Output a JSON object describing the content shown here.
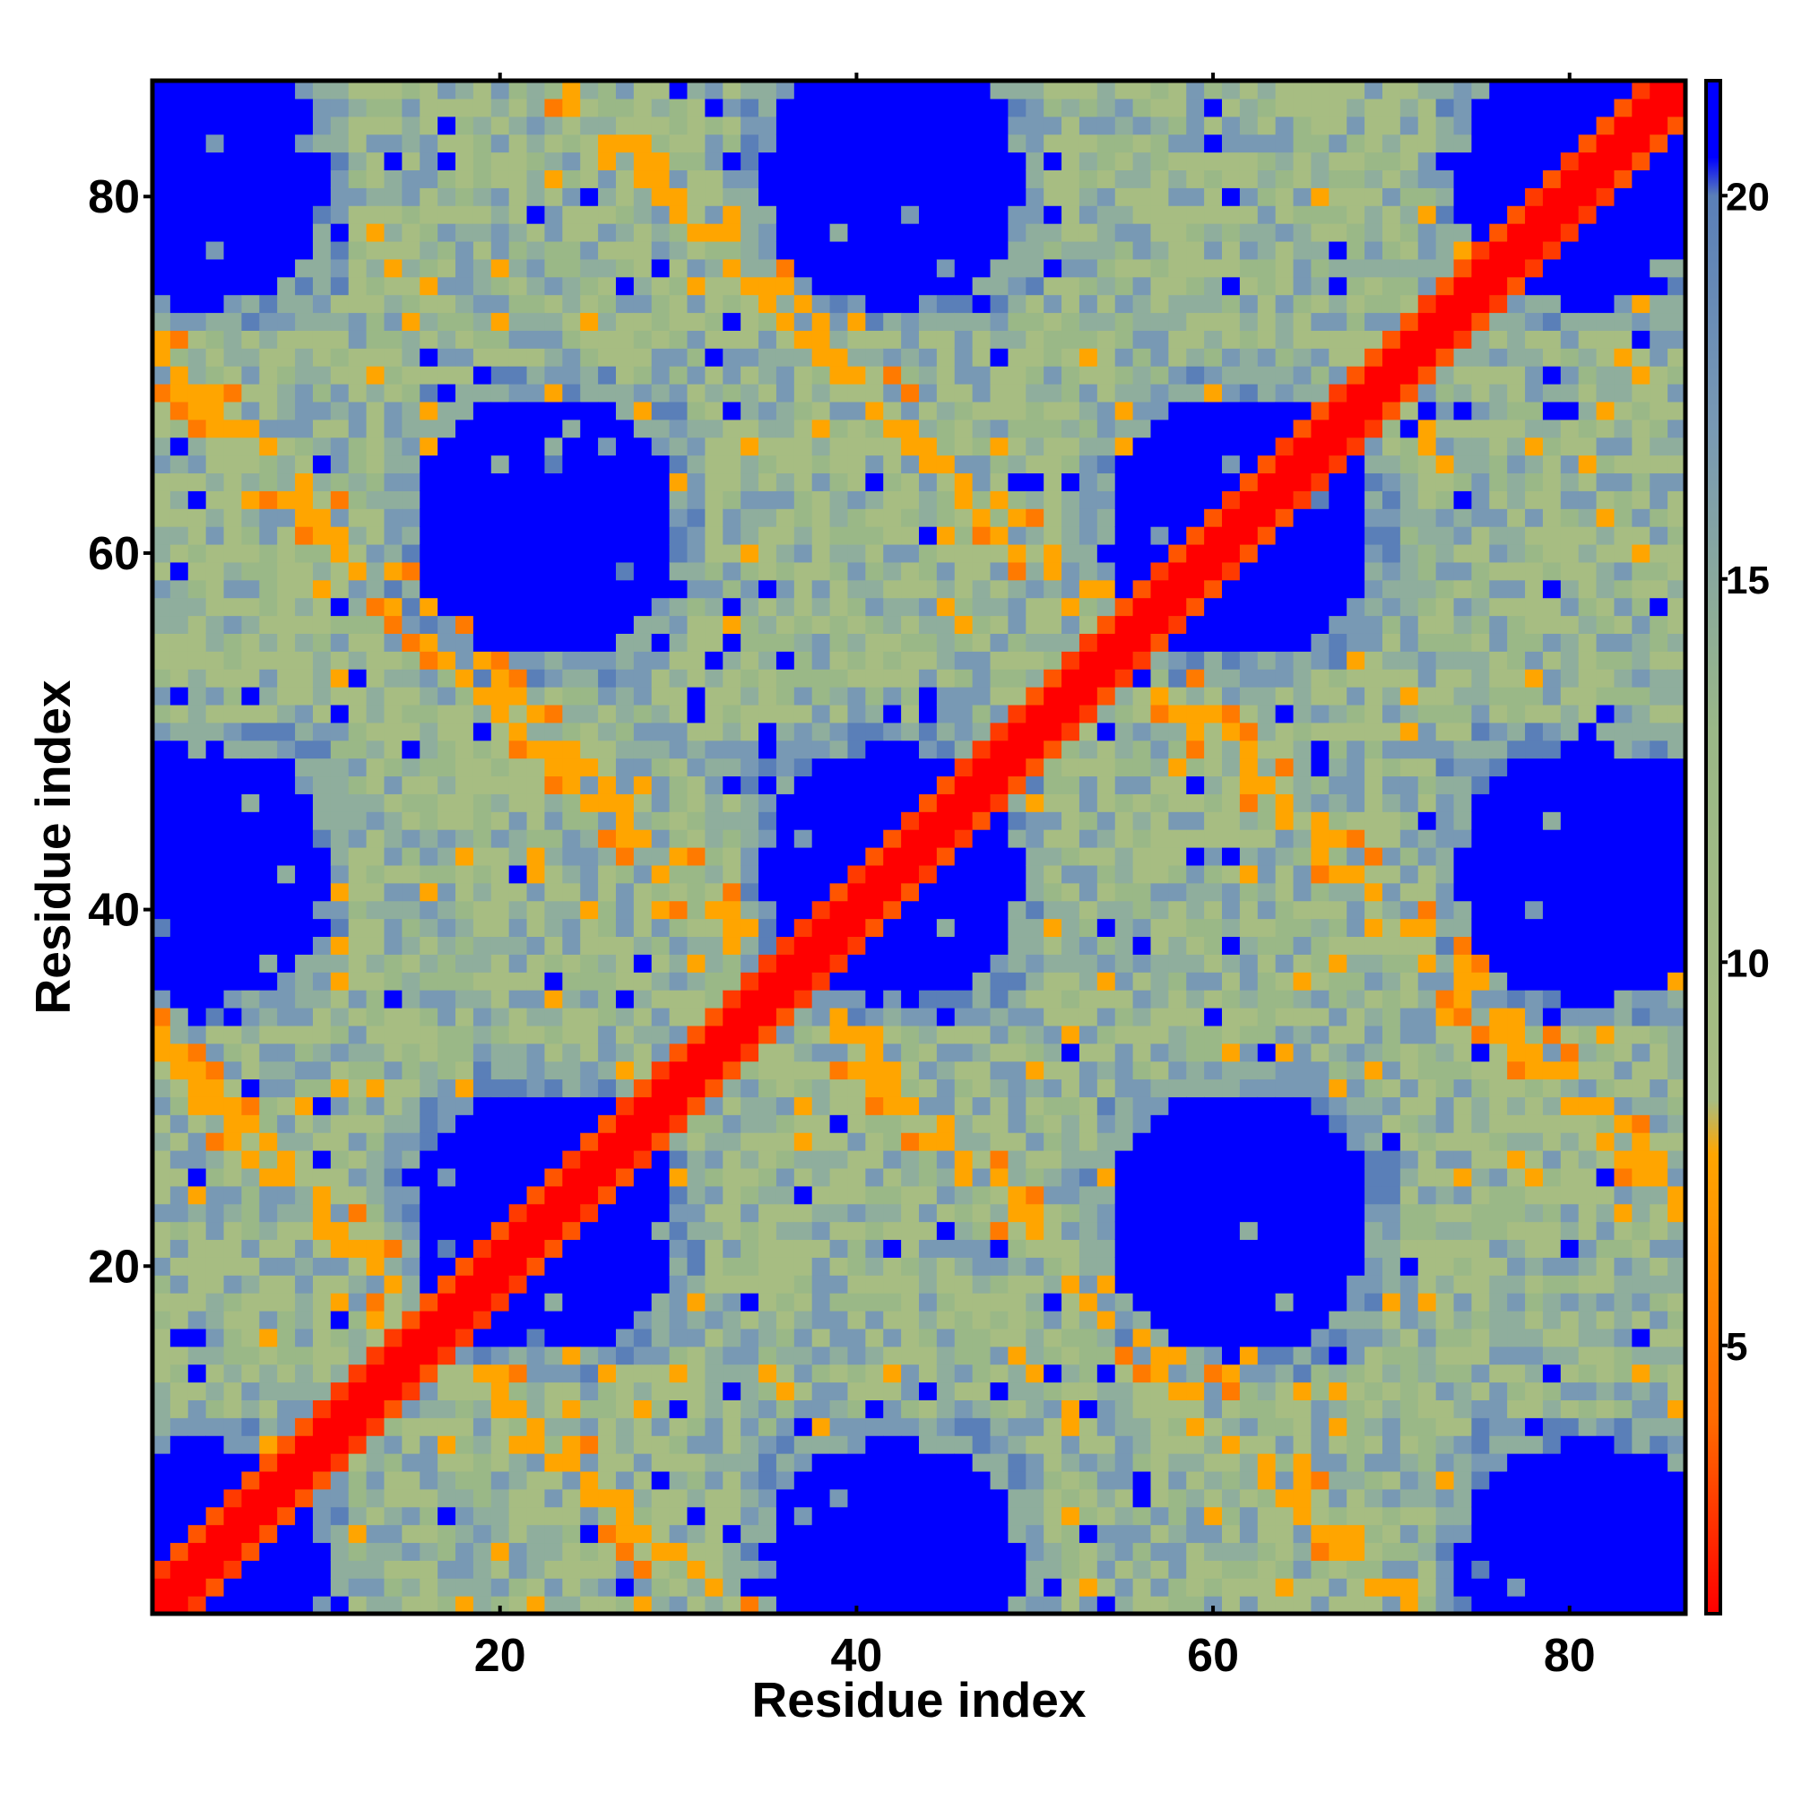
{
  "chart_data": {
    "type": "heatmap",
    "title": "",
    "xlabel": "Residue index",
    "ylabel": "Residue index",
    "n_residues": 86,
    "xlim": [
      0.5,
      86.5
    ],
    "ylim": [
      0.5,
      86.5
    ],
    "x_ticks": [
      20,
      40,
      60,
      80
    ],
    "y_ticks": [
      20,
      40,
      60,
      80
    ],
    "colorbar": {
      "min": 1.5,
      "max": 21.5,
      "ticks": [
        5,
        10,
        15,
        20
      ],
      "stops": [
        {
          "value": 1.5,
          "color": "#ff0000"
        },
        {
          "value": 4.0,
          "color": "#ff6a00"
        },
        {
          "value": 7.5,
          "color": "#ffa500"
        },
        {
          "value": 8.2,
          "color": "#a7bd82"
        },
        {
          "value": 13.0,
          "color": "#9ab887"
        },
        {
          "value": 17.0,
          "color": "#7899b4"
        },
        {
          "value": 20.0,
          "color": "#5a7fb8"
        },
        {
          "value": 20.5,
          "color": "#0000ff"
        },
        {
          "value": 21.5,
          "color": "#0000ff"
        }
      ]
    },
    "grid": false,
    "legend": "colorbar right",
    "description_of_values": "pairwise residue distance map; red main diagonal, orange anti-diagonal contact bands, blue (>20) far regions"
  }
}
